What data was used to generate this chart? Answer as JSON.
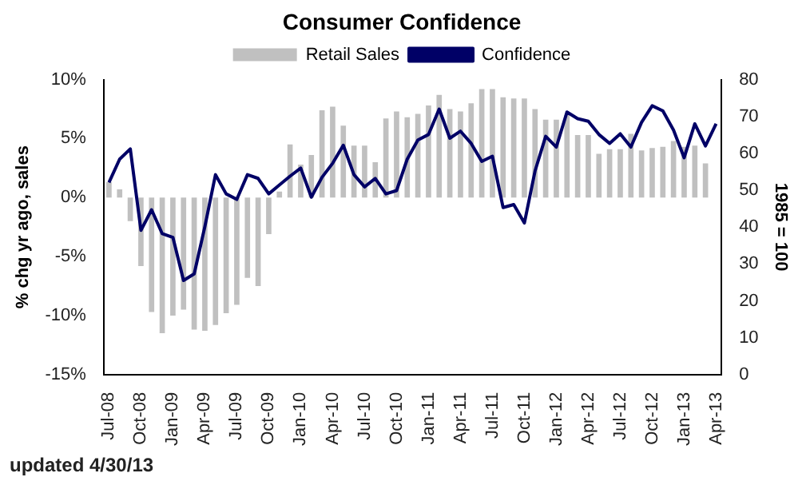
{
  "chart_data": {
    "type": "bar",
    "title": "Consumer Confidence",
    "categories": [
      "Jul-08",
      null,
      null,
      "Oct-08",
      null,
      null,
      "Jan-09",
      null,
      null,
      "Apr-09",
      null,
      null,
      "Jul-09",
      null,
      null,
      "Oct-09",
      null,
      null,
      "Jan-10",
      null,
      null,
      "Apr-10",
      null,
      null,
      "Jul-10",
      null,
      null,
      "Oct-10",
      null,
      null,
      "Jan-11",
      null,
      null,
      "Apr-11",
      null,
      null,
      "Jul-11",
      null,
      null,
      "Oct-11",
      null,
      null,
      "Jan-12",
      null,
      null,
      "Apr-12",
      null,
      null,
      "Jul-12",
      null,
      null,
      "Oct-12",
      null,
      null,
      "Jan-13",
      null,
      null,
      "Apr-13"
    ],
    "series": [
      {
        "name": "Retail Sales",
        "color": "#c0c0c0",
        "values": [
          1.3,
          0.7,
          -2.0,
          -5.8,
          -9.7,
          -11.5,
          -10.0,
          -9.5,
          -11.2,
          -11.3,
          -10.8,
          -9.8,
          -9.1,
          -6.8,
          -7.5,
          -3.1,
          0.5,
          4.5,
          2.8,
          3.6,
          7.4,
          7.7,
          6.1,
          4.4,
          4.4,
          3.0,
          6.7,
          7.3,
          6.8,
          7.1,
          7.8,
          8.7,
          7.5,
          7.3,
          8.0,
          9.2,
          9.2,
          8.5,
          8.4,
          8.4,
          7.5,
          6.6,
          6.6,
          7.0,
          5.3,
          5.3,
          3.7,
          4.1,
          4.1,
          5.4,
          4.0,
          4.2,
          4.3,
          4.8,
          4.3,
          4.4,
          2.9,
          null
        ]
      },
      {
        "name": "Confidence",
        "type": "line",
        "axis": "y2",
        "color": "#000066",
        "values": [
          52.1,
          58.4,
          61.2,
          39.1,
          44.7,
          38.2,
          37.2,
          25.5,
          27.3,
          40.1,
          54.2,
          49.0,
          47.5,
          54.2,
          53.2,
          49.0,
          51.4,
          53.8,
          56.0,
          48.1,
          53.5,
          57.3,
          62.2,
          54.2,
          50.9,
          53.2,
          49.0,
          49.9,
          58.4,
          63.6,
          65.1,
          72.0,
          64.1,
          66.0,
          62.7,
          57.8,
          59.2,
          45.3,
          46.1,
          41.1,
          55.2,
          64.6,
          61.7,
          71.2,
          69.4,
          68.7,
          65.1,
          62.7,
          65.3,
          61.7,
          68.4,
          72.9,
          71.5,
          66.3,
          58.8,
          68.0,
          62.0,
          68.0
        ]
      }
    ],
    "ylabel": "% chg yr ago, sales",
    "y2label": "1985 = 100",
    "ylim": [
      -15,
      10
    ],
    "yticks": [
      {
        "value": -15,
        "label": "-15%"
      },
      {
        "value": -10,
        "label": "-10%"
      },
      {
        "value": -5,
        "label": "-5%"
      },
      {
        "value": 0,
        "label": "0%"
      },
      {
        "value": 5,
        "label": "5%"
      },
      {
        "value": 10,
        "label": "10%"
      }
    ],
    "y2lim": [
      0,
      80
    ],
    "y2ticks": [
      0,
      10,
      20,
      30,
      40,
      50,
      60,
      70,
      80
    ],
    "legend": "top",
    "grid": false,
    "marker": "none",
    "annotations": [
      "updated 4/30/13"
    ]
  }
}
